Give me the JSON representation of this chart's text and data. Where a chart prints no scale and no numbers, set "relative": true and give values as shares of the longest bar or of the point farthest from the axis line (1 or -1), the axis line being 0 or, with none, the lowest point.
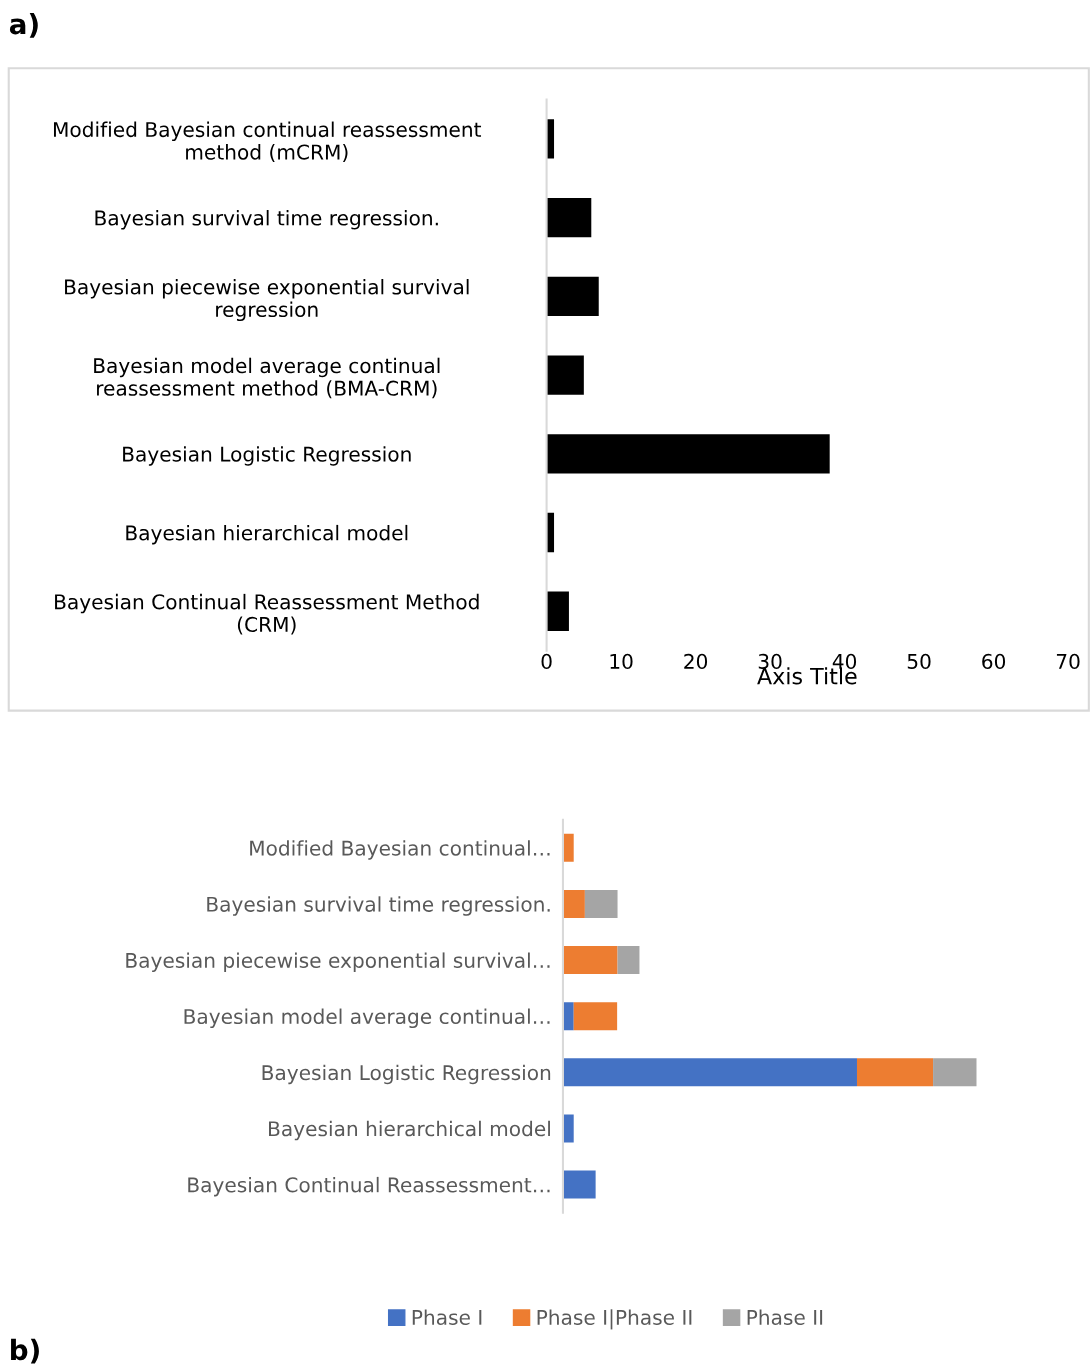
{
  "chart_data": [
    {
      "type": "bar",
      "orientation": "horizontal",
      "annotations": [
        "a)"
      ],
      "xlabel": "Axis Title",
      "categories": [
        "Modified Bayesian continual reassessment method (mCRM)",
        "Bayesian survival time regression.",
        "Bayesian piecewise exponential survival regression",
        "Bayesian model average continual reassessment method (BMA-CRM)",
        "Bayesian Logistic Regression",
        "Bayesian hierarchical model",
        "Bayesian Continual Reassessment Method (CRM)"
      ],
      "values": [
        1,
        6,
        7,
        5,
        38,
        1,
        3
      ],
      "color": "#000000",
      "xlim": [
        0,
        70
      ],
      "xticks": [
        0,
        10,
        20,
        30,
        40,
        50,
        60,
        70
      ],
      "grid": false,
      "legend": false
    },
    {
      "type": "bar",
      "orientation": "horizontal",
      "stacked": true,
      "relative": true,
      "annotations": [
        "b)"
      ],
      "categories": [
        "Modified Bayesian continual…",
        "Bayesian survival time regression.",
        "Bayesian piecewise exponential survival…",
        "Bayesian model average continual…",
        "Bayesian Logistic Regression",
        "Bayesian hierarchical model",
        "Bayesian Continual Reassessment…"
      ],
      "series": [
        {
          "name": "Phase I",
          "color": "#4472c4",
          "values": [
            0,
            0,
            0,
            0.026,
            0.711,
            0.026,
            0.079
          ]
        },
        {
          "name": "Phase I|Phase II",
          "color": "#ed7d31",
          "values": [
            0.026,
            0.053,
            0.132,
            0.105,
            0.184,
            0,
            0
          ]
        },
        {
          "name": "Phase II",
          "color": "#a5a5a5",
          "values": [
            0,
            0.079,
            0.053,
            0,
            0.105,
            0,
            0
          ]
        }
      ],
      "grid": false,
      "legend": "bottom"
    }
  ]
}
